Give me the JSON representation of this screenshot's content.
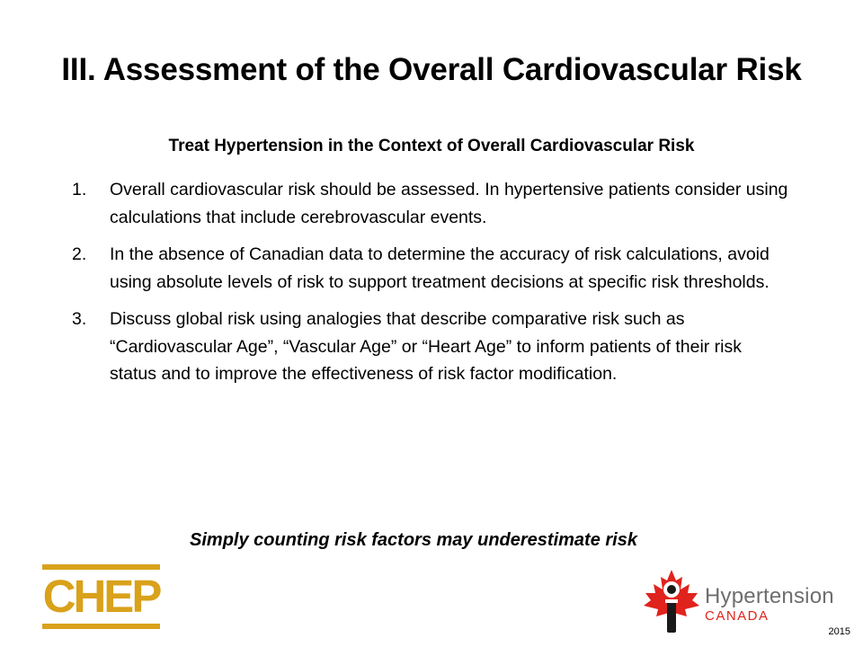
{
  "slide": {
    "title": "III. Assessment of the Overall Cardiovascular Risk",
    "subtitle": "Treat Hypertension in the Context of Overall Cardiovascular Risk",
    "items": [
      {
        "number": "1.",
        "text": "Overall cardiovascular risk should be assessed.  In hypertensive patients consider using calculations that include cerebrovascular events."
      },
      {
        "number": "2.",
        "text": "In the absence of Canadian data to determine the accuracy of risk calculations, avoid using absolute levels of risk to support treatment decisions at specific risk thresholds."
      },
      {
        "number": "3.",
        "text": "Discuss global risk using analogies that  describe comparative risk such as “Cardiovascular Age”, “Vascular Age” or “Heart Age” to inform patients of their risk status and to improve the effectiveness of risk factor modification."
      }
    ],
    "footnote": "Simply counting risk factors may underestimate risk",
    "year": "2015"
  },
  "logos": {
    "chep": {
      "text": "CHEP",
      "color": "#D9A21B"
    },
    "hypertension_canada": {
      "name": "Hypertension",
      "sub": "CANADA",
      "icon": "maple-leaf-person-icon",
      "name_color": "#6E6E6E",
      "accent_color": "#E0231C"
    }
  }
}
